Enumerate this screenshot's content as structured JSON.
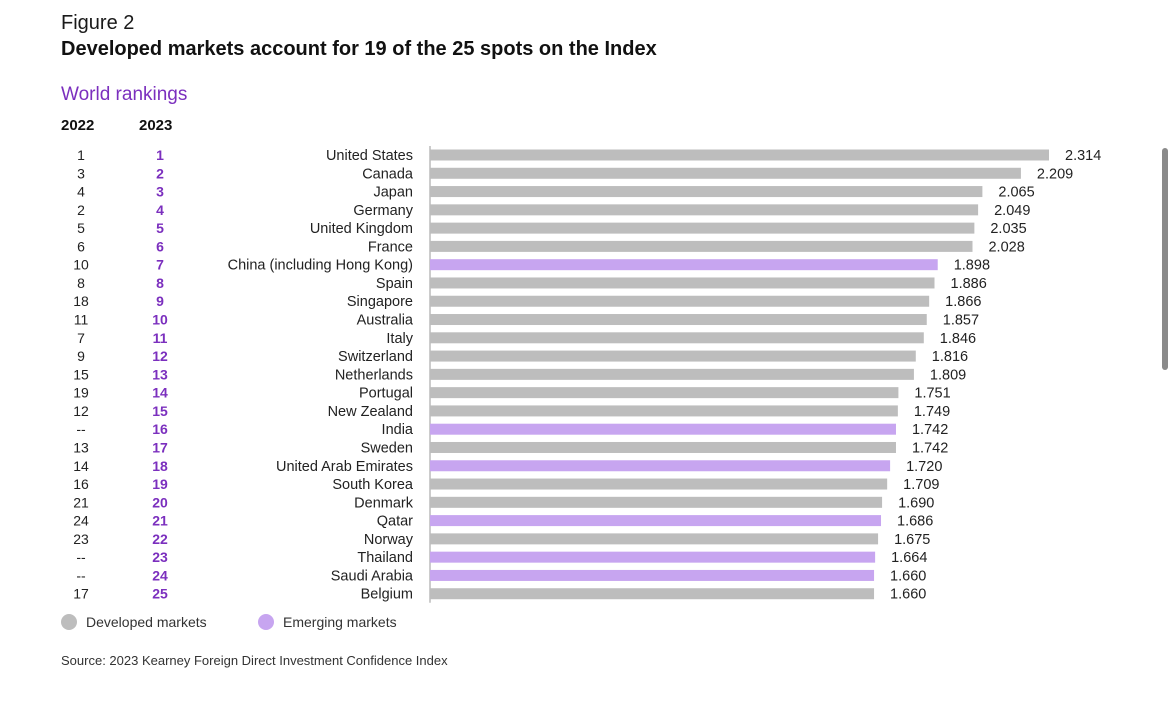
{
  "figure_label": "Figure 2",
  "title": "Developed markets account for 19 of the 25 spots on the Index",
  "subtitle": "World rankings",
  "col_headers": {
    "y2022": "2022",
    "y2023": "2023"
  },
  "legend": {
    "developed": "Developed markets",
    "emerging": "Emerging markets"
  },
  "source": "Source: 2023 Kearney Foreign Direct Investment Confidence Index",
  "colors": {
    "developed": "#bdbdbd",
    "emerging": "#c7a5f0",
    "rank2023": "#7b2fbe",
    "axis": "#999999"
  },
  "chart_data": {
    "type": "bar",
    "orientation": "horizontal",
    "xlim": [
      0,
      2.314
    ],
    "rows": [
      {
        "rank2022": "1",
        "rank2023": "1",
        "country": "United States",
        "value": 2.314,
        "value_label": "2.314",
        "group": "developed"
      },
      {
        "rank2022": "3",
        "rank2023": "2",
        "country": "Canada",
        "value": 2.209,
        "value_label": "2.209",
        "group": "developed"
      },
      {
        "rank2022": "4",
        "rank2023": "3",
        "country": "Japan",
        "value": 2.065,
        "value_label": "2.065",
        "group": "developed"
      },
      {
        "rank2022": "2",
        "rank2023": "4",
        "country": "Germany",
        "value": 2.049,
        "value_label": "2.049",
        "group": "developed"
      },
      {
        "rank2022": "5",
        "rank2023": "5",
        "country": "United Kingdom",
        "value": 2.035,
        "value_label": "2.035",
        "group": "developed"
      },
      {
        "rank2022": "6",
        "rank2023": "6",
        "country": "France",
        "value": 2.028,
        "value_label": "2.028",
        "group": "developed"
      },
      {
        "rank2022": "10",
        "rank2023": "7",
        "country": "China (including Hong Kong)",
        "value": 1.898,
        "value_label": "1.898",
        "group": "emerging"
      },
      {
        "rank2022": "8",
        "rank2023": "8",
        "country": "Spain",
        "value": 1.886,
        "value_label": "1.886",
        "group": "developed"
      },
      {
        "rank2022": "18",
        "rank2023": "9",
        "country": "Singapore",
        "value": 1.866,
        "value_label": "1.866",
        "group": "developed"
      },
      {
        "rank2022": "11",
        "rank2023": "10",
        "country": "Australia",
        "value": 1.857,
        "value_label": "1.857",
        "group": "developed"
      },
      {
        "rank2022": "7",
        "rank2023": "11",
        "country": "Italy",
        "value": 1.846,
        "value_label": "1.846",
        "group": "developed"
      },
      {
        "rank2022": "9",
        "rank2023": "12",
        "country": "Switzerland",
        "value": 1.816,
        "value_label": "1.816",
        "group": "developed"
      },
      {
        "rank2022": "15",
        "rank2023": "13",
        "country": "Netherlands",
        "value": 1.809,
        "value_label": "1.809",
        "group": "developed"
      },
      {
        "rank2022": "19",
        "rank2023": "14",
        "country": "Portugal",
        "value": 1.751,
        "value_label": "1.751",
        "group": "developed"
      },
      {
        "rank2022": "12",
        "rank2023": "15",
        "country": "New Zealand",
        "value": 1.749,
        "value_label": "1.749",
        "group": "developed"
      },
      {
        "rank2022": "--",
        "rank2023": "16",
        "country": "India",
        "value": 1.742,
        "value_label": "1.742",
        "group": "emerging"
      },
      {
        "rank2022": "13",
        "rank2023": "17",
        "country": "Sweden",
        "value": 1.742,
        "value_label": "1.742",
        "group": "developed"
      },
      {
        "rank2022": "14",
        "rank2023": "18",
        "country": "United Arab Emirates",
        "value": 1.72,
        "value_label": "1.720",
        "group": "emerging"
      },
      {
        "rank2022": "16",
        "rank2023": "19",
        "country": "South Korea",
        "value": 1.709,
        "value_label": "1.709",
        "group": "developed"
      },
      {
        "rank2022": "21",
        "rank2023": "20",
        "country": "Denmark",
        "value": 1.69,
        "value_label": "1.690",
        "group": "developed"
      },
      {
        "rank2022": "24",
        "rank2023": "21",
        "country": "Qatar",
        "value": 1.686,
        "value_label": "1.686",
        "group": "emerging"
      },
      {
        "rank2022": "23",
        "rank2023": "22",
        "country": "Norway",
        "value": 1.675,
        "value_label": "1.675",
        "group": "developed"
      },
      {
        "rank2022": "--",
        "rank2023": "23",
        "country": "Thailand",
        "value": 1.664,
        "value_label": "1.664",
        "group": "emerging"
      },
      {
        "rank2022": "--",
        "rank2023": "24",
        "country": "Saudi Arabia",
        "value": 1.66,
        "value_label": "1.660",
        "group": "emerging"
      },
      {
        "rank2022": "17",
        "rank2023": "25",
        "country": "Belgium",
        "value": 1.66,
        "value_label": "1.660",
        "group": "developed"
      }
    ]
  }
}
